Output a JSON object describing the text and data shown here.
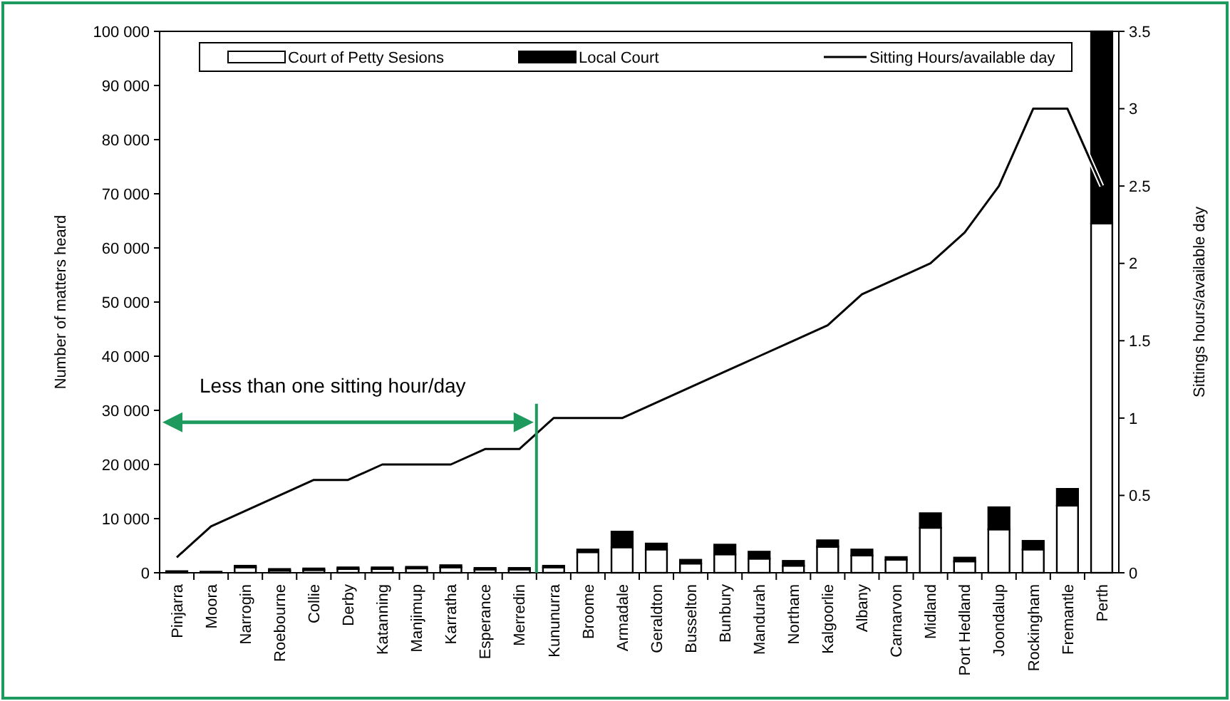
{
  "chart_data": {
    "type": "bar",
    "stacked": true,
    "ylabel": "Number of matters heard",
    "y2label": "Sittings hours/available day",
    "categories": [
      "Pinjarra",
      "Moora",
      "Narrogin",
      "Roebourne",
      "Collie",
      "Derby",
      "Katanning",
      "Manjimup",
      "Karratha",
      "Esperance",
      "Merredin",
      "Kununurra",
      "Broome",
      "Armadale",
      "Geraldton",
      "Busselton",
      "Bunbury",
      "Mandurah",
      "Northam",
      "Kalgoorlie",
      "Albany",
      "Carnarvon",
      "Midland",
      "Port Hedland",
      "Joondalup",
      "Rockingham",
      "Fremantle",
      "Perth"
    ],
    "series": [
      {
        "name": "Court of Petty Sesions",
        "color": "#ffffff",
        "values": [
          null,
          null,
          1000,
          400,
          500,
          700,
          700,
          800,
          1000,
          600,
          600,
          1000,
          3800,
          4700,
          4300,
          1700,
          3400,
          2600,
          1300,
          4800,
          3200,
          2400,
          8300,
          2100,
          8000,
          4300,
          12400,
          64500
        ]
      },
      {
        "name": "Local Court",
        "color": "#000000",
        "values": [
          300,
          200,
          300,
          300,
          300,
          300,
          300,
          300,
          400,
          300,
          300,
          300,
          500,
          2900,
          1100,
          700,
          1800,
          1300,
          900,
          1200,
          1100,
          500,
          2700,
          700,
          4100,
          1600,
          3100,
          35500
        ]
      },
      {
        "name": "Sitting Hours/available day",
        "type": "line",
        "axis": "y2",
        "color": "#000000",
        "values": [
          0.1,
          0.3,
          0.4,
          0.5,
          0.6,
          0.6,
          0.7,
          0.7,
          0.7,
          0.8,
          0.8,
          1.0,
          1.0,
          1.0,
          1.1,
          1.2,
          1.3,
          1.4,
          1.5,
          1.6,
          1.8,
          1.9,
          2.0,
          2.2,
          2.5,
          3.0,
          3.0,
          2.5
        ]
      }
    ],
    "ylim": [
      0,
      100000
    ],
    "yticks": [
      0,
      {
        "value": 10000,
        "label": "10 000"
      },
      {
        "value": 20000,
        "label": "20 000"
      },
      {
        "value": 30000,
        "label": "30 000"
      },
      {
        "value": 40000,
        "label": "40 000"
      },
      {
        "value": 50000,
        "label": "50 000"
      },
      {
        "value": 60000,
        "label": "60 000"
      },
      {
        "value": 70000,
        "label": "70 000"
      },
      {
        "value": 80000,
        "label": "80 000"
      },
      {
        "value": 90000,
        "label": "90 000"
      },
      {
        "value": 100000,
        "label": "100 000"
      }
    ],
    "y2lim": [
      0,
      3.5
    ],
    "y2ticks": [
      0,
      0.5,
      1,
      1.5,
      2,
      2.5,
      3,
      3.5
    ],
    "legend": "top",
    "grid": false,
    "annotations": [
      "Less than one sitting hour/day"
    ]
  }
}
